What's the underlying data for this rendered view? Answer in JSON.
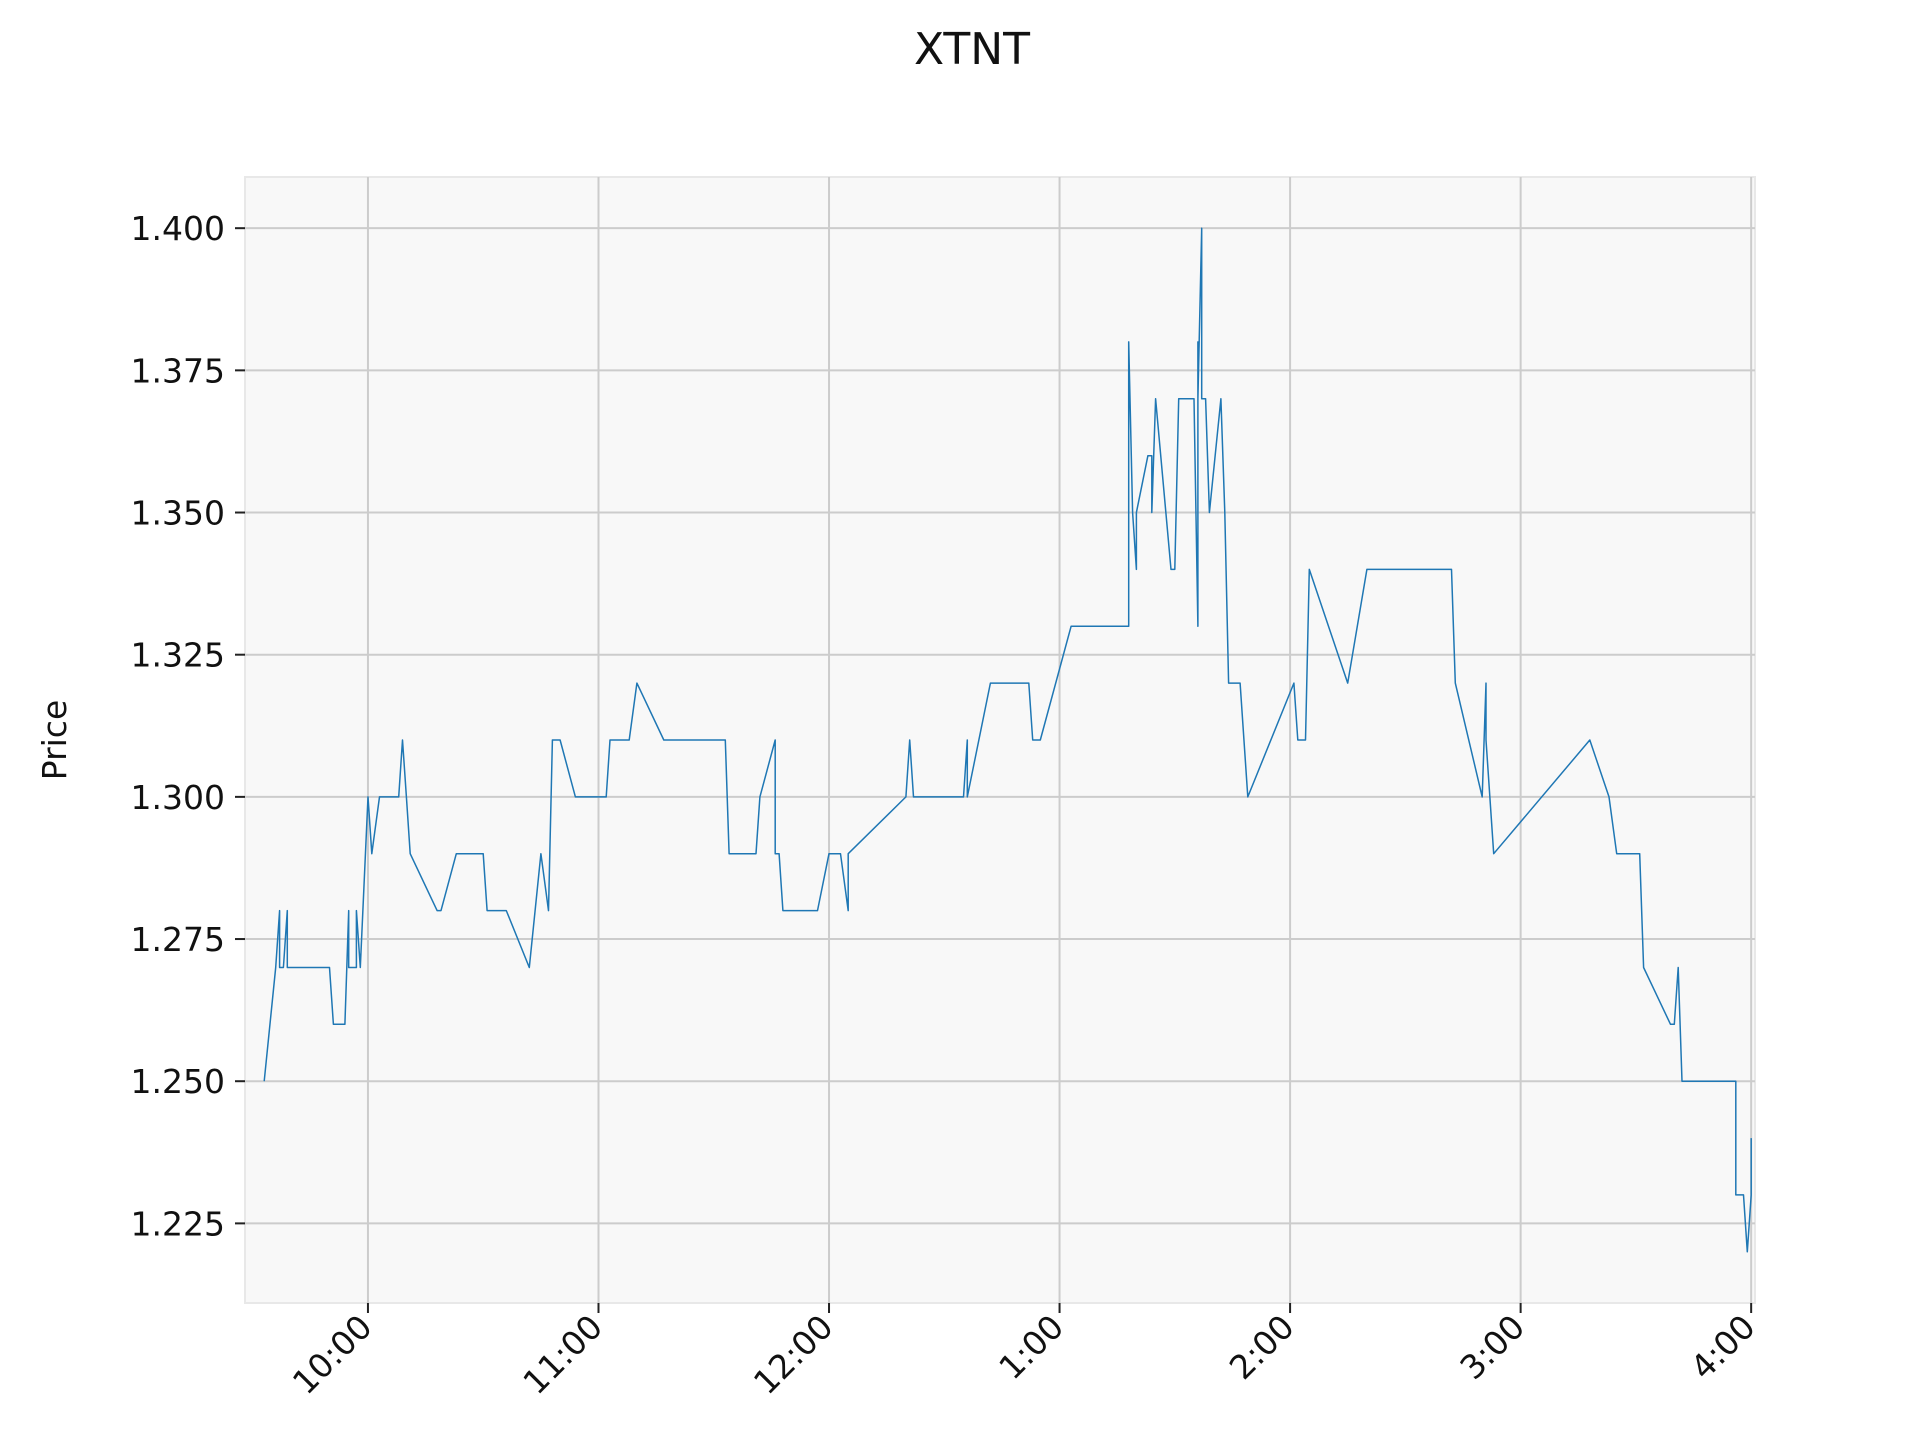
{
  "chart_data": {
    "type": "line",
    "title": "XTNT",
    "xlabel": "",
    "ylabel": "Price",
    "grid": true,
    "x_unit": "time of day",
    "xlim": [
      "9:28",
      "4:01"
    ],
    "ylim": [
      1.211,
      1.409
    ],
    "x_ticks": [
      {
        "label": "10:00",
        "time": "10:00"
      },
      {
        "label": "11:00",
        "time": "11:00"
      },
      {
        "label": "12:00",
        "time": "12:00"
      },
      {
        "label": "1:00",
        "time": "1:00"
      },
      {
        "label": "2:00",
        "time": "2:00"
      },
      {
        "label": "3:00",
        "time": "3:00"
      },
      {
        "label": "4:00",
        "time": "4:00"
      }
    ],
    "y_ticks": [
      "1.225",
      "1.250",
      "1.275",
      "1.300",
      "1.325",
      "1.350",
      "1.375",
      "1.400"
    ],
    "colors": {
      "line": "#1f77b4",
      "plot_bg": "#f8f8f8",
      "grid": "#cccccc"
    },
    "series": [
      {
        "points": [
          [
            "9:33",
            1.25
          ],
          [
            "9:36",
            1.27
          ],
          [
            "9:37",
            1.28
          ],
          [
            "9:37",
            1.27
          ],
          [
            "9:38",
            1.27
          ],
          [
            "9:39",
            1.28
          ],
          [
            "9:39",
            1.27
          ],
          [
            "9:50",
            1.27
          ],
          [
            "9:51",
            1.26
          ],
          [
            "9:54",
            1.26
          ],
          [
            "9:55",
            1.28
          ],
          [
            "9:55",
            1.27
          ],
          [
            "9:57",
            1.27
          ],
          [
            "9:57",
            1.28
          ],
          [
            "9:58",
            1.27
          ],
          [
            "10:00",
            1.3
          ],
          [
            "10:01",
            1.29
          ],
          [
            "10:03",
            1.3
          ],
          [
            "10:08",
            1.3
          ],
          [
            "10:09",
            1.31
          ],
          [
            "10:10",
            1.3
          ],
          [
            "10:11",
            1.29
          ],
          [
            "10:18",
            1.28
          ],
          [
            "10:19",
            1.28
          ],
          [
            "10:23",
            1.29
          ],
          [
            "10:30",
            1.29
          ],
          [
            "10:31",
            1.28
          ],
          [
            "10:36",
            1.28
          ],
          [
            "10:42",
            1.27
          ],
          [
            "10:45",
            1.29
          ],
          [
            "10:47",
            1.28
          ],
          [
            "10:48",
            1.31
          ],
          [
            "10:50",
            1.31
          ],
          [
            "10:54",
            1.3
          ],
          [
            "11:02",
            1.3
          ],
          [
            "11:03",
            1.31
          ],
          [
            "11:08",
            1.31
          ],
          [
            "11:10",
            1.32
          ],
          [
            "11:17",
            1.31
          ],
          [
            "11:33",
            1.31
          ],
          [
            "11:34",
            1.29
          ],
          [
            "11:41",
            1.29
          ],
          [
            "11:42",
            1.3
          ],
          [
            "11:46",
            1.31
          ],
          [
            "11:46",
            1.29
          ],
          [
            "11:47",
            1.29
          ],
          [
            "11:48",
            1.28
          ],
          [
            "11:57",
            1.28
          ],
          [
            "12:00",
            1.29
          ],
          [
            "12:03",
            1.29
          ],
          [
            "12:05",
            1.28
          ],
          [
            "12:05",
            1.29
          ],
          [
            "12:20",
            1.3
          ],
          [
            "12:21",
            1.31
          ],
          [
            "12:22",
            1.3
          ],
          [
            "12:35",
            1.3
          ],
          [
            "12:36",
            1.31
          ],
          [
            "12:36",
            1.3
          ],
          [
            "12:42",
            1.32
          ],
          [
            "12:52",
            1.32
          ],
          [
            "12:53",
            1.31
          ],
          [
            "12:55",
            1.31
          ],
          [
            "1:03",
            1.33
          ],
          [
            "1:18",
            1.33
          ],
          [
            "1:18",
            1.38
          ],
          [
            "1:19",
            1.35
          ],
          [
            "1:20",
            1.34
          ],
          [
            "1:20",
            1.35
          ],
          [
            "1:23",
            1.36
          ],
          [
            "1:24",
            1.36
          ],
          [
            "1:24",
            1.35
          ],
          [
            "1:25",
            1.37
          ],
          [
            "1:29",
            1.34
          ],
          [
            "1:30",
            1.34
          ],
          [
            "1:31",
            1.37
          ],
          [
            "1:35",
            1.37
          ],
          [
            "1:36",
            1.33
          ],
          [
            "1:36",
            1.38
          ],
          [
            "1:36",
            1.37
          ],
          [
            "1:37",
            1.4
          ],
          [
            "1:37",
            1.37
          ],
          [
            "1:38",
            1.37
          ],
          [
            "1:39",
            1.35
          ],
          [
            "1:42",
            1.37
          ],
          [
            "1:43",
            1.35
          ],
          [
            "1:44",
            1.32
          ],
          [
            "1:47",
            1.32
          ],
          [
            "1:49",
            1.3
          ],
          [
            "2:01",
            1.32
          ],
          [
            "2:02",
            1.31
          ],
          [
            "2:04",
            1.31
          ],
          [
            "2:05",
            1.34
          ],
          [
            "2:15",
            1.32
          ],
          [
            "2:20",
            1.34
          ],
          [
            "2:42",
            1.34
          ],
          [
            "2:43",
            1.32
          ],
          [
            "2:50",
            1.3
          ],
          [
            "2:51",
            1.32
          ],
          [
            "2:51",
            1.31
          ],
          [
            "2:53",
            1.29
          ],
          [
            "3:18",
            1.31
          ],
          [
            "3:23",
            1.3
          ],
          [
            "3:25",
            1.29
          ],
          [
            "3:31",
            1.29
          ],
          [
            "3:32",
            1.27
          ],
          [
            "3:39",
            1.26
          ],
          [
            "3:40",
            1.26
          ],
          [
            "3:41",
            1.27
          ],
          [
            "3:42",
            1.25
          ],
          [
            "3:56",
            1.25
          ],
          [
            "3:56",
            1.23
          ],
          [
            "3:58",
            1.23
          ],
          [
            "3:59",
            1.22
          ],
          [
            "4:00",
            1.23
          ],
          [
            "4:00",
            1.24
          ]
        ]
      }
    ]
  }
}
